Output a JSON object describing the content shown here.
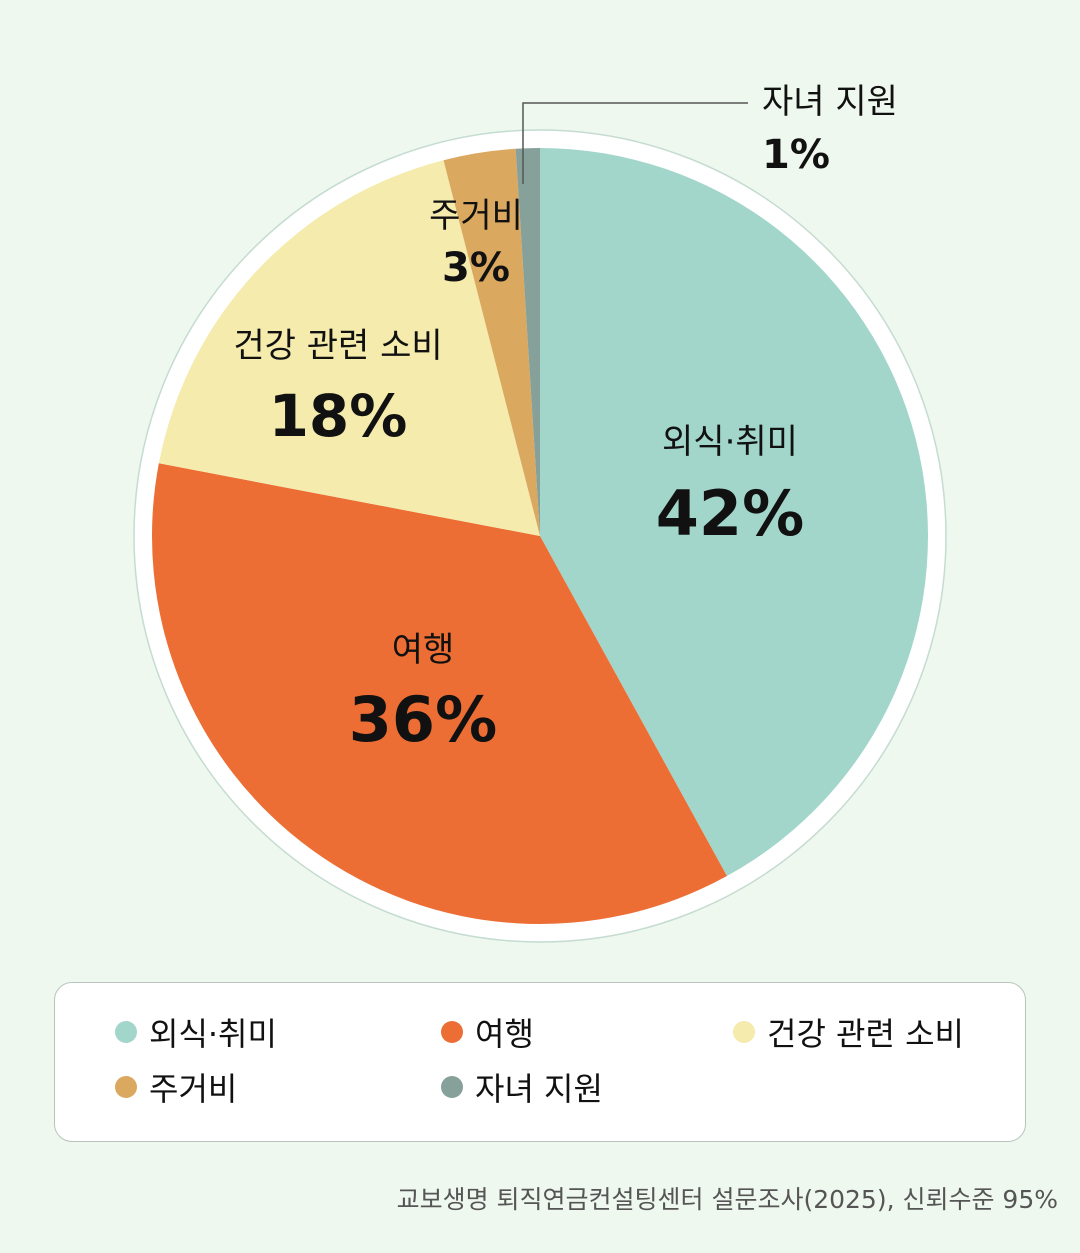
{
  "chart_data": {
    "type": "pie",
    "slices": [
      {
        "label": "외식·취미",
        "value": 42,
        "display": "42%",
        "color": "#a3d6cb"
      },
      {
        "label": "여행",
        "value": 36,
        "display": "36%",
        "color": "#ec6e34"
      },
      {
        "label": "건강 관련 소비",
        "value": 18,
        "display": "18%",
        "color": "#f4ebad"
      },
      {
        "label": "주거비",
        "value": 3,
        "display": "3%",
        "color": "#dba860"
      },
      {
        "label": "자녀 지원",
        "value": 1,
        "display": "1%",
        "color": "#86a09a"
      }
    ]
  },
  "legend": {
    "items": [
      {
        "label": "외식·취미",
        "color": "#a3d6cb"
      },
      {
        "label": "여행",
        "color": "#ec6e34"
      },
      {
        "label": "건강 관련 소비",
        "color": "#f4ebad"
      },
      {
        "label": "주거비",
        "color": "#dba860"
      },
      {
        "label": "자녀 지원",
        "color": "#86a09a"
      }
    ]
  },
  "source": "교보생명 퇴직연금컨설팅센터 설문조사(2025), 신뢰수준 95%"
}
